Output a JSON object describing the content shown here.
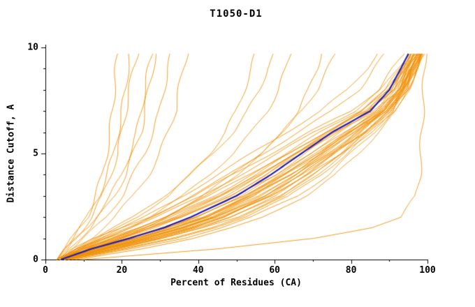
{
  "chart_data": {
    "type": "line",
    "title": "T1050-D1",
    "xlabel": "Percent of Residues (CA)",
    "ylabel": "Distance Cutoff, A",
    "xlim": [
      0,
      100
    ],
    "ylim": [
      0,
      10
    ],
    "x_major_ticks": [
      0,
      20,
      40,
      60,
      80,
      100
    ],
    "x_minor_step": 10,
    "y_major_ticks": [
      0,
      5,
      10
    ],
    "y_minor_step": 1,
    "legend": "none",
    "grid": "off",
    "colors": {
      "models": "#ef8e00",
      "highlight": "#241fb0",
      "axis": "#000000",
      "text": "#000000",
      "background": "#ffffff"
    },
    "y_levels": [
      0,
      0.5,
      1,
      1.5,
      2,
      3,
      4,
      5,
      6,
      7,
      8,
      9,
      9.7
    ],
    "highlight_series": {
      "name": "highlighted-model",
      "x_at_levels": [
        4,
        12,
        22,
        31,
        38,
        50,
        59,
        67,
        75,
        85,
        90,
        93,
        95
      ]
    },
    "model_curves": [
      [
        4,
        10,
        18,
        26,
        33,
        45,
        55,
        64,
        73,
        83,
        89,
        93,
        96
      ],
      [
        4,
        14,
        25,
        34,
        42,
        54,
        63,
        71,
        79,
        87,
        92,
        95,
        97
      ],
      [
        5,
        16,
        28,
        38,
        46,
        58,
        67,
        75,
        82,
        89,
        93,
        96,
        98
      ],
      [
        3,
        8,
        15,
        22,
        29,
        41,
        51,
        61,
        70,
        81,
        88,
        92,
        95
      ],
      [
        4,
        11,
        20,
        29,
        36,
        48,
        58,
        66,
        75,
        85,
        91,
        94,
        96
      ],
      [
        5,
        18,
        30,
        40,
        48,
        60,
        69,
        77,
        84,
        90,
        94,
        96,
        98
      ],
      [
        4,
        9,
        16,
        24,
        31,
        43,
        53,
        63,
        72,
        82,
        89,
        93,
        96
      ],
      [
        4,
        13,
        23,
        32,
        40,
        52,
        61,
        70,
        78,
        87,
        92,
        95,
        97
      ],
      [
        5,
        15,
        27,
        37,
        45,
        57,
        66,
        74,
        81,
        88,
        93,
        95,
        97
      ],
      [
        3,
        7,
        13,
        20,
        27,
        39,
        49,
        59,
        69,
        80,
        87,
        91,
        94
      ],
      [
        4,
        12,
        21,
        30,
        38,
        50,
        60,
        68,
        76,
        86,
        91,
        94,
        97
      ],
      [
        5,
        17,
        29,
        39,
        47,
        59,
        68,
        76,
        83,
        90,
        94,
        96,
        98
      ],
      [
        4,
        10,
        19,
        28,
        35,
        47,
        57,
        65,
        74,
        84,
        90,
        94,
        96
      ],
      [
        4,
        14,
        24,
        33,
        41,
        53,
        62,
        71,
        79,
        87,
        92,
        95,
        97
      ],
      [
        5,
        16,
        26,
        36,
        44,
        56,
        65,
        73,
        81,
        88,
        93,
        96,
        98
      ],
      [
        3,
        9,
        17,
        25,
        32,
        44,
        54,
        64,
        73,
        83,
        90,
        93,
        96
      ],
      [
        4,
        13,
        22,
        31,
        39,
        51,
        61,
        69,
        77,
        86,
        92,
        95,
        97
      ],
      [
        5,
        15,
        25,
        35,
        43,
        55,
        64,
        72,
        80,
        88,
        93,
        95,
        97
      ],
      [
        4,
        11,
        19,
        27,
        34,
        46,
        56,
        66,
        75,
        84,
        90,
        94,
        96
      ],
      [
        4,
        12,
        20,
        28,
        36,
        48,
        58,
        67,
        76,
        85,
        91,
        94,
        97
      ],
      [
        3,
        5,
        7,
        9,
        11,
        13,
        15,
        16,
        17,
        17.5,
        18,
        18.5,
        19
      ],
      [
        3,
        5,
        8,
        10,
        12,
        15,
        17,
        19,
        20,
        21,
        22,
        23,
        24
      ],
      [
        4,
        6,
        9,
        12,
        14,
        18,
        21,
        23,
        25,
        26,
        27,
        28,
        29
      ],
      [
        4,
        7,
        10,
        13,
        16,
        20,
        23,
        26,
        28,
        30,
        31,
        32,
        33
      ],
      [
        3,
        6,
        8,
        11,
        13,
        17,
        20,
        22,
        24,
        25,
        26,
        27,
        28
      ],
      [
        4,
        8,
        12,
        15,
        18,
        23,
        27,
        30,
        32,
        34,
        35,
        36,
        37
      ],
      [
        3,
        5,
        7,
        9,
        11,
        14,
        16,
        18,
        19,
        20,
        21,
        21.5,
        22
      ],
      [
        4,
        9,
        14,
        19,
        24,
        32,
        38,
        43,
        47,
        50,
        52,
        54,
        55
      ],
      [
        4,
        10,
        16,
        22,
        27,
        36,
        43,
        49,
        54,
        58,
        61,
        63,
        64
      ],
      [
        5,
        12,
        19,
        26,
        32,
        42,
        50,
        57,
        62,
        66,
        69,
        71,
        72
      ],
      [
        4,
        8,
        13,
        18,
        23,
        31,
        38,
        44,
        49,
        53,
        56,
        58,
        60
      ],
      [
        5,
        11,
        18,
        25,
        31,
        41,
        49,
        56,
        62,
        67,
        71,
        74,
        76
      ],
      [
        6,
        20,
        33,
        43,
        51,
        63,
        71,
        78,
        84,
        90,
        94,
        96,
        98
      ],
      [
        7,
        22,
        36,
        46,
        54,
        66,
        74,
        80,
        86,
        91,
        94,
        97,
        98
      ],
      [
        8,
        25,
        39,
        49,
        57,
        68,
        76,
        82,
        87,
        92,
        95,
        97,
        99
      ],
      [
        6,
        19,
        31,
        41,
        50,
        62,
        70,
        77,
        83,
        89,
        93,
        96,
        98
      ],
      [
        10,
        45,
        70,
        85,
        93,
        97,
        98,
        98.3,
        98.5,
        98.8,
        99,
        99.2,
        99.4
      ],
      [
        5,
        18,
        30,
        41,
        49,
        61,
        70,
        78,
        85,
        91,
        95,
        97,
        99
      ],
      [
        4,
        15,
        26,
        36,
        44,
        56,
        66,
        74,
        82,
        89,
        94,
        96,
        98
      ],
      [
        5,
        13,
        24,
        34,
        42,
        54,
        64,
        73,
        81,
        89,
        94,
        97,
        99
      ],
      [
        4,
        16,
        28,
        38,
        47,
        59,
        68,
        76,
        84,
        90,
        94,
        97,
        98
      ],
      [
        5,
        14,
        26,
        36,
        45,
        57,
        67,
        75,
        83,
        90,
        95,
        97,
        99
      ],
      [
        4,
        12,
        22,
        32,
        41,
        53,
        63,
        72,
        80,
        88,
        93,
        96,
        98
      ],
      [
        6,
        21,
        34,
        44,
        52,
        64,
        72,
        79,
        85,
        91,
        95,
        97,
        98
      ],
      [
        4,
        11,
        21,
        31,
        40,
        52,
        62,
        71,
        79,
        88,
        93,
        96,
        98
      ],
      [
        5,
        17,
        28,
        38,
        46,
        58,
        67,
        75,
        82,
        89,
        93,
        96,
        98
      ],
      [
        3,
        10,
        18,
        26,
        34,
        46,
        56,
        65,
        74,
        84,
        91,
        94,
        97
      ],
      [
        4,
        13,
        23,
        33,
        42,
        54,
        64,
        72,
        80,
        88,
        93,
        96,
        98
      ],
      [
        3,
        8,
        14,
        20,
        26,
        36,
        45,
        54,
        63,
        72,
        79,
        84,
        87
      ],
      [
        4,
        9,
        15,
        22,
        28,
        38,
        48,
        57,
        66,
        75,
        82,
        86,
        89
      ]
    ]
  }
}
